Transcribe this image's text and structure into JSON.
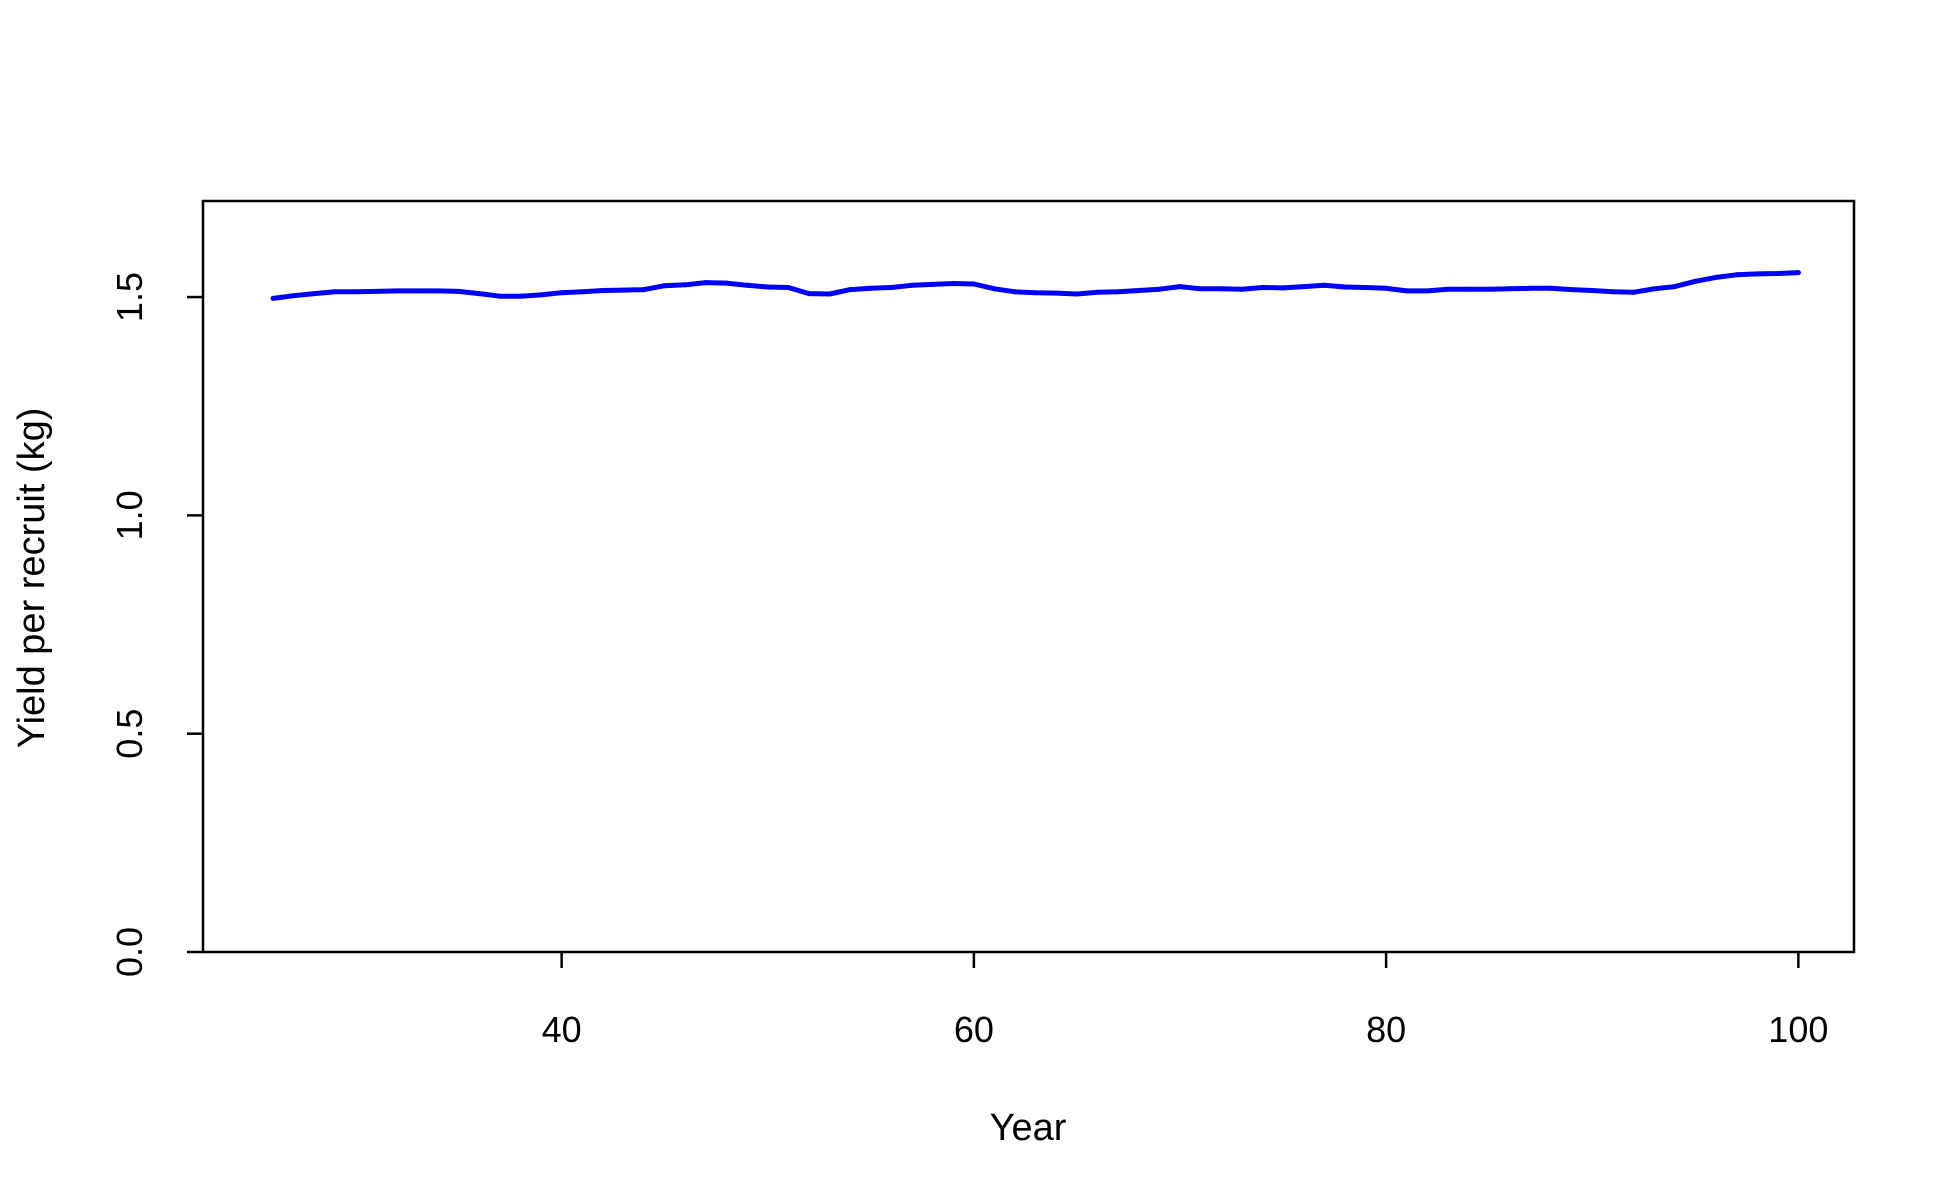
{
  "chart_data": {
    "type": "line",
    "title": "",
    "xlabel": "Year",
    "ylabel": "Yield per recruit (kg)",
    "xlim": [
      22.6,
      102.7
    ],
    "ylim": [
      0,
      1.72
    ],
    "xticks": [
      40,
      60,
      80,
      100
    ],
    "yticks": [
      0.0,
      0.5,
      1.0,
      1.5
    ],
    "xtick_labels": [
      "40",
      "60",
      "80",
      "100"
    ],
    "ytick_labels": [
      "0.0",
      "0.5",
      "1.0",
      "1.5"
    ],
    "grid": false,
    "legend": "none",
    "line_color": "#0000ff",
    "series": [
      {
        "x": [
          26,
          27,
          28,
          29,
          30,
          31,
          32,
          33,
          34,
          35,
          36,
          37,
          38,
          39,
          40,
          41,
          42,
          43,
          44,
          45,
          46,
          47,
          48,
          49,
          50,
          51,
          52,
          53,
          54,
          55,
          56,
          57,
          58,
          59,
          60,
          61,
          62,
          63,
          64,
          65,
          66,
          67,
          68,
          69,
          70,
          71,
          72,
          73,
          74,
          75,
          76,
          77,
          78,
          79,
          80,
          81,
          82,
          83,
          84,
          85,
          86,
          87,
          88,
          89,
          90,
          91,
          92,
          93,
          94,
          95,
          96,
          97,
          98,
          99,
          100
        ],
        "y": [
          1.497,
          1.503,
          1.508,
          1.512,
          1.512,
          1.513,
          1.514,
          1.514,
          1.514,
          1.513,
          1.508,
          1.502,
          1.502,
          1.505,
          1.51,
          1.512,
          1.515,
          1.516,
          1.517,
          1.526,
          1.528,
          1.533,
          1.532,
          1.527,
          1.523,
          1.522,
          1.508,
          1.507,
          1.517,
          1.52,
          1.522,
          1.527,
          1.529,
          1.531,
          1.53,
          1.519,
          1.512,
          1.51,
          1.509,
          1.507,
          1.511,
          1.512,
          1.515,
          1.518,
          1.524,
          1.519,
          1.519,
          1.518,
          1.522,
          1.521,
          1.524,
          1.527,
          1.523,
          1.522,
          1.52,
          1.514,
          1.514,
          1.518,
          1.518,
          1.518,
          1.519,
          1.52,
          1.52,
          1.517,
          1.515,
          1.512,
          1.511,
          1.519,
          1.524,
          1.536,
          1.545,
          1.551,
          1.553,
          1.554,
          1.556
        ]
      }
    ]
  }
}
